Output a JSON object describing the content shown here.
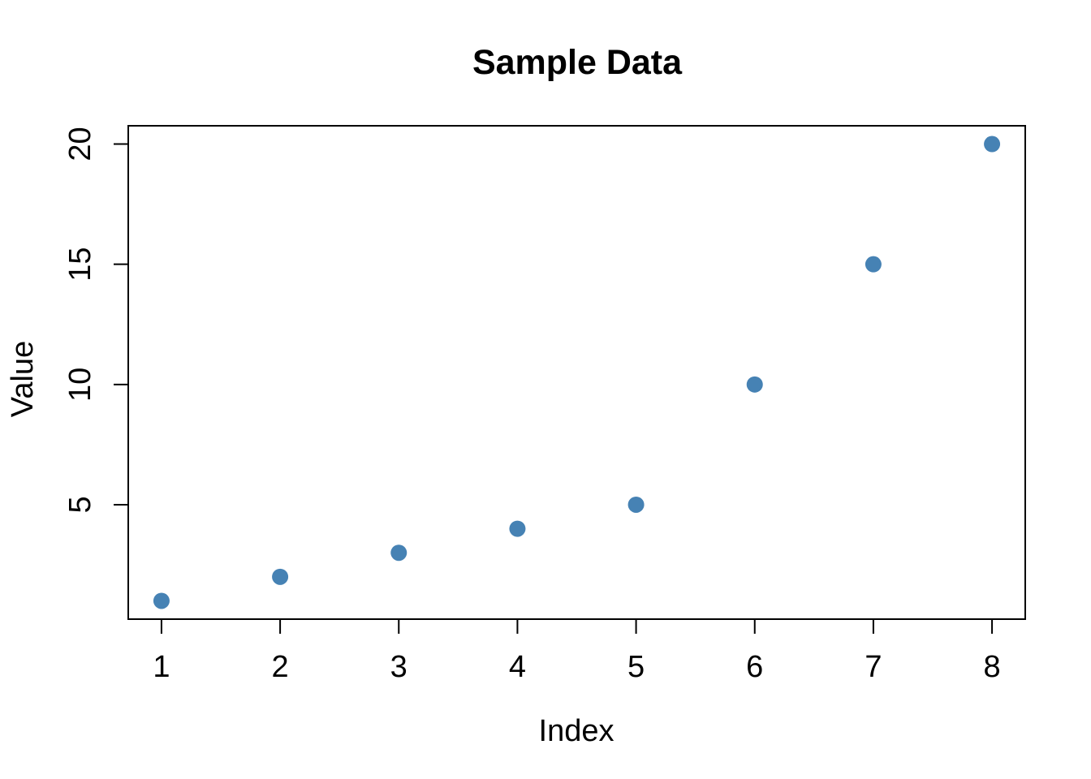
{
  "chart_data": {
    "type": "scatter",
    "title": "Sample Data",
    "xlabel": "Index",
    "ylabel": "Value",
    "x": [
      1,
      2,
      3,
      4,
      5,
      6,
      7,
      8
    ],
    "y": [
      1,
      2,
      3,
      4,
      5,
      10,
      15,
      20
    ],
    "x_ticks": [
      1,
      2,
      3,
      4,
      5,
      6,
      7,
      8
    ],
    "y_ticks": [
      5,
      10,
      15,
      20
    ],
    "xlim": [
      0.72,
      8.28
    ],
    "ylim": [
      0.24,
      20.76
    ],
    "grid": false,
    "legend": null,
    "point_color": "#4682B4",
    "axis_color": "#000000",
    "background_color": "#FFFFFF"
  }
}
